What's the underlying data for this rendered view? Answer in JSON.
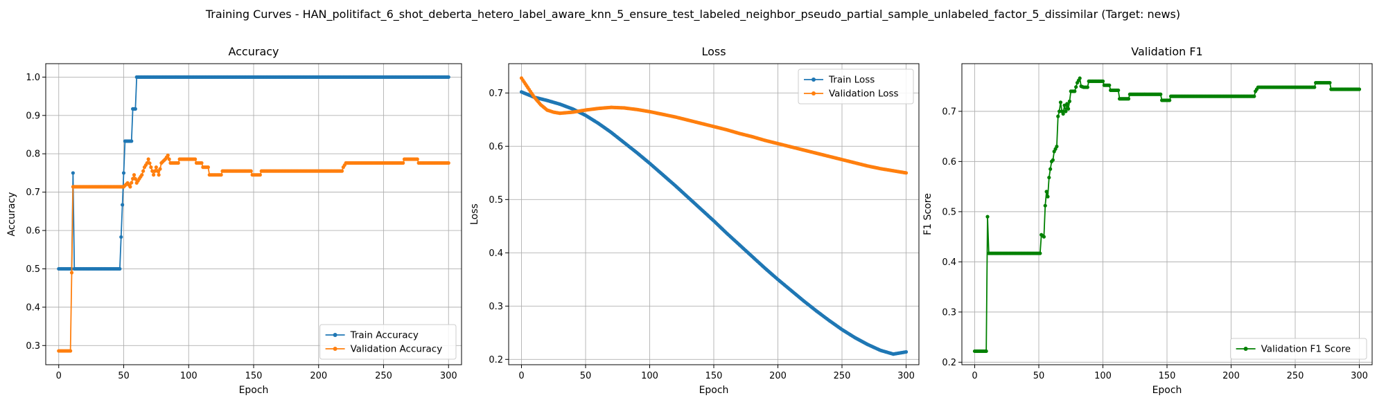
{
  "suptitle": "Training Curves - HAN_politifact_6_shot_deberta_hetero_label_aware_knn_5_ensure_test_labeled_neighbor_pseudo_partial_sample_unlabeled_factor_5_dissimilar (Target: news)",
  "chart_data": [
    {
      "type": "line",
      "title": "Accuracy",
      "xlabel": "Epoch",
      "ylabel": "Accuracy",
      "xlim": [
        -10,
        310
      ],
      "ylim": [
        0.25,
        1.035
      ],
      "xticks": [
        0,
        50,
        100,
        150,
        200,
        250,
        300
      ],
      "yticks": [
        0.3,
        0.4,
        0.5,
        0.6,
        0.7,
        0.8,
        0.9,
        1.0
      ],
      "ytick_labels": [
        "0.3",
        "0.4",
        "0.5",
        "0.6",
        "0.7",
        "0.8",
        "0.9",
        "1.0"
      ],
      "grid": true,
      "legend_position": "lower-right",
      "series": [
        {
          "name": "Train Accuracy",
          "color": "#1f77b4",
          "points": [
            [
              0,
              0.5
            ],
            [
              9,
              0.5
            ],
            [
              10,
              0.5
            ],
            [
              11,
              0.75
            ],
            [
              12,
              0.5
            ],
            [
              47,
              0.5
            ],
            [
              48,
              0.583
            ],
            [
              49,
              0.667
            ],
            [
              50,
              0.75
            ],
            [
              51,
              0.833
            ],
            [
              56,
              0.833
            ],
            [
              57,
              0.917
            ],
            [
              59,
              0.917
            ],
            [
              60,
              1.0
            ],
            [
              300,
              1.0
            ]
          ]
        },
        {
          "name": "Validation Accuracy",
          "color": "#ff7f0e",
          "points": [
            [
              0,
              0.286
            ],
            [
              9,
              0.286
            ],
            [
              10,
              0.49
            ],
            [
              11,
              0.714
            ],
            [
              50,
              0.714
            ],
            [
              53,
              0.724
            ],
            [
              55,
              0.714
            ],
            [
              57,
              0.735
            ],
            [
              58,
              0.745
            ],
            [
              60,
              0.724
            ],
            [
              62,
              0.735
            ],
            [
              64,
              0.745
            ],
            [
              66,
              0.765
            ],
            [
              68,
              0.776
            ],
            [
              69,
              0.786
            ],
            [
              71,
              0.765
            ],
            [
              73,
              0.745
            ],
            [
              75,
              0.765
            ],
            [
              77,
              0.745
            ],
            [
              79,
              0.776
            ],
            [
              82,
              0.786
            ],
            [
              84,
              0.796
            ],
            [
              86,
              0.776
            ],
            [
              92,
              0.776
            ],
            [
              93,
              0.786
            ],
            [
              105,
              0.786
            ],
            [
              106,
              0.776
            ],
            [
              110,
              0.776
            ],
            [
              111,
              0.765
            ],
            [
              115,
              0.765
            ],
            [
              116,
              0.745
            ],
            [
              125,
              0.745
            ],
            [
              126,
              0.755
            ],
            [
              148,
              0.755
            ],
            [
              149,
              0.745
            ],
            [
              155,
              0.745
            ],
            [
              156,
              0.755
            ],
            [
              218,
              0.755
            ],
            [
              219,
              0.765
            ],
            [
              221,
              0.776
            ],
            [
              265,
              0.776
            ],
            [
              266,
              0.786
            ],
            [
              276,
              0.786
            ],
            [
              277,
              0.776
            ],
            [
              300,
              0.776
            ]
          ]
        }
      ]
    },
    {
      "type": "line",
      "title": "Loss",
      "xlabel": "Epoch",
      "ylabel": "Loss",
      "xlim": [
        -10,
        310
      ],
      "ylim": [
        0.19,
        0.755
      ],
      "xticks": [
        0,
        50,
        100,
        150,
        200,
        250,
        300
      ],
      "yticks": [
        0.2,
        0.3,
        0.4,
        0.5,
        0.6,
        0.7
      ],
      "ytick_labels": [
        "0.2",
        "0.3",
        "0.4",
        "0.5",
        "0.6",
        "0.7"
      ],
      "grid": true,
      "legend_position": "upper-right",
      "series": [
        {
          "name": "Train Loss",
          "color": "#1f77b4",
          "points": [
            [
              0,
              0.702
            ],
            [
              10,
              0.692
            ],
            [
              20,
              0.686
            ],
            [
              30,
              0.679
            ],
            [
              40,
              0.67
            ],
            [
              50,
              0.658
            ],
            [
              60,
              0.643
            ],
            [
              70,
              0.626
            ],
            [
              80,
              0.607
            ],
            [
              90,
              0.588
            ],
            [
              100,
              0.568
            ],
            [
              110,
              0.547
            ],
            [
              120,
              0.526
            ],
            [
              130,
              0.504
            ],
            [
              140,
              0.482
            ],
            [
              150,
              0.46
            ],
            [
              160,
              0.437
            ],
            [
              170,
              0.415
            ],
            [
              180,
              0.393
            ],
            [
              190,
              0.371
            ],
            [
              200,
              0.35
            ],
            [
              210,
              0.33
            ],
            [
              220,
              0.31
            ],
            [
              230,
              0.291
            ],
            [
              240,
              0.273
            ],
            [
              250,
              0.256
            ],
            [
              260,
              0.241
            ],
            [
              270,
              0.228
            ],
            [
              280,
              0.217
            ],
            [
              290,
              0.21
            ],
            [
              300,
              0.214
            ]
          ]
        },
        {
          "name": "Validation Loss",
          "color": "#ff7f0e",
          "points": [
            [
              0,
              0.728
            ],
            [
              5,
              0.71
            ],
            [
              10,
              0.692
            ],
            [
              15,
              0.678
            ],
            [
              20,
              0.668
            ],
            [
              25,
              0.664
            ],
            [
              30,
              0.662
            ],
            [
              40,
              0.664
            ],
            [
              50,
              0.668
            ],
            [
              60,
              0.671
            ],
            [
              70,
              0.673
            ],
            [
              80,
              0.672
            ],
            [
              90,
              0.669
            ],
            [
              100,
              0.665
            ],
            [
              110,
              0.66
            ],
            [
              120,
              0.655
            ],
            [
              130,
              0.649
            ],
            [
              140,
              0.643
            ],
            [
              150,
              0.637
            ],
            [
              160,
              0.631
            ],
            [
              170,
              0.624
            ],
            [
              180,
              0.618
            ],
            [
              190,
              0.611
            ],
            [
              200,
              0.605
            ],
            [
              210,
              0.599
            ],
            [
              220,
              0.593
            ],
            [
              230,
              0.587
            ],
            [
              240,
              0.581
            ],
            [
              250,
              0.575
            ],
            [
              260,
              0.569
            ],
            [
              270,
              0.563
            ],
            [
              280,
              0.558
            ],
            [
              290,
              0.554
            ],
            [
              300,
              0.55
            ]
          ]
        }
      ]
    },
    {
      "type": "line",
      "title": "Validation F1",
      "xlabel": "Epoch",
      "ylabel": "F1 Score",
      "xlim": [
        -10,
        310
      ],
      "ylim": [
        0.195,
        0.795
      ],
      "xticks": [
        0,
        50,
        100,
        150,
        200,
        250,
        300
      ],
      "yticks": [
        0.2,
        0.3,
        0.4,
        0.5,
        0.6,
        0.7
      ],
      "ytick_labels": [
        "0.2",
        "0.3",
        "0.4",
        "0.5",
        "0.6",
        "0.7"
      ],
      "grid": true,
      "legend_position": "lower-right",
      "series": [
        {
          "name": "Validation F1 Score",
          "color": "#008000",
          "points": [
            [
              0,
              0.222
            ],
            [
              9,
              0.222
            ],
            [
              10,
              0.49
            ],
            [
              11,
              0.417
            ],
            [
              51,
              0.417
            ],
            [
              52,
              0.454
            ],
            [
              54,
              0.45
            ],
            [
              55,
              0.512
            ],
            [
              56,
              0.54
            ],
            [
              57,
              0.53
            ],
            [
              58,
              0.568
            ],
            [
              59,
              0.585
            ],
            [
              60,
              0.6
            ],
            [
              61,
              0.603
            ],
            [
              62,
              0.62
            ],
            [
              64,
              0.63
            ],
            [
              65,
              0.69
            ],
            [
              66,
              0.7
            ],
            [
              67,
              0.718
            ],
            [
              68,
              0.7
            ],
            [
              69,
              0.695
            ],
            [
              70,
              0.712
            ],
            [
              71,
              0.7
            ],
            [
              72,
              0.715
            ],
            [
              73,
              0.705
            ],
            [
              74,
              0.72
            ],
            [
              75,
              0.74
            ],
            [
              78,
              0.74
            ],
            [
              80,
              0.757
            ],
            [
              82,
              0.766
            ],
            [
              83,
              0.75
            ],
            [
              85,
              0.748
            ],
            [
              88,
              0.748
            ],
            [
              89,
              0.76
            ],
            [
              100,
              0.76
            ],
            [
              101,
              0.752
            ],
            [
              105,
              0.752
            ],
            [
              106,
              0.742
            ],
            [
              112,
              0.742
            ],
            [
              113,
              0.725
            ],
            [
              120,
              0.725
            ],
            [
              121,
              0.734
            ],
            [
              145,
              0.734
            ],
            [
              146,
              0.722
            ],
            [
              152,
              0.722
            ],
            [
              153,
              0.73
            ],
            [
              218,
              0.73
            ],
            [
              219,
              0.74
            ],
            [
              221,
              0.748
            ],
            [
              265,
              0.748
            ],
            [
              266,
              0.757
            ],
            [
              277,
              0.757
            ],
            [
              278,
              0.744
            ],
            [
              300,
              0.744
            ]
          ]
        }
      ]
    }
  ]
}
